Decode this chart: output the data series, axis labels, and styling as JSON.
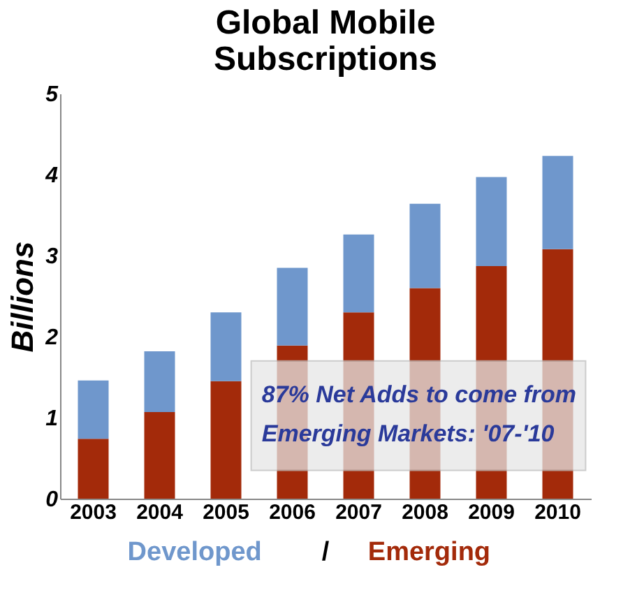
{
  "chart_data": {
    "type": "bar",
    "title": "Global Mobile\nSubscriptions",
    "ylabel": "Billions",
    "stacked": true,
    "legend": "bottom",
    "grid": false,
    "categories": [
      "2003",
      "2004",
      "2005",
      "2006",
      "2007",
      "2008",
      "2009",
      "2010"
    ],
    "series": [
      {
        "name": "Emerging",
        "color": "#a32a0a",
        "values": [
          0.74,
          1.07,
          1.45,
          1.89,
          2.3,
          2.6,
          2.87,
          3.08
        ]
      },
      {
        "name": "Developed",
        "color": "#6f97cc",
        "values": [
          0.72,
          0.75,
          0.85,
          0.96,
          0.96,
          1.04,
          1.1,
          1.15
        ]
      }
    ],
    "ylim": [
      0,
      5
    ],
    "yticks": [
      0,
      1,
      2,
      3,
      4,
      5
    ],
    "annotations": [
      "87% Net Adds to come from\nEmerging Markets: '07-'10",
      "/"
    ]
  }
}
